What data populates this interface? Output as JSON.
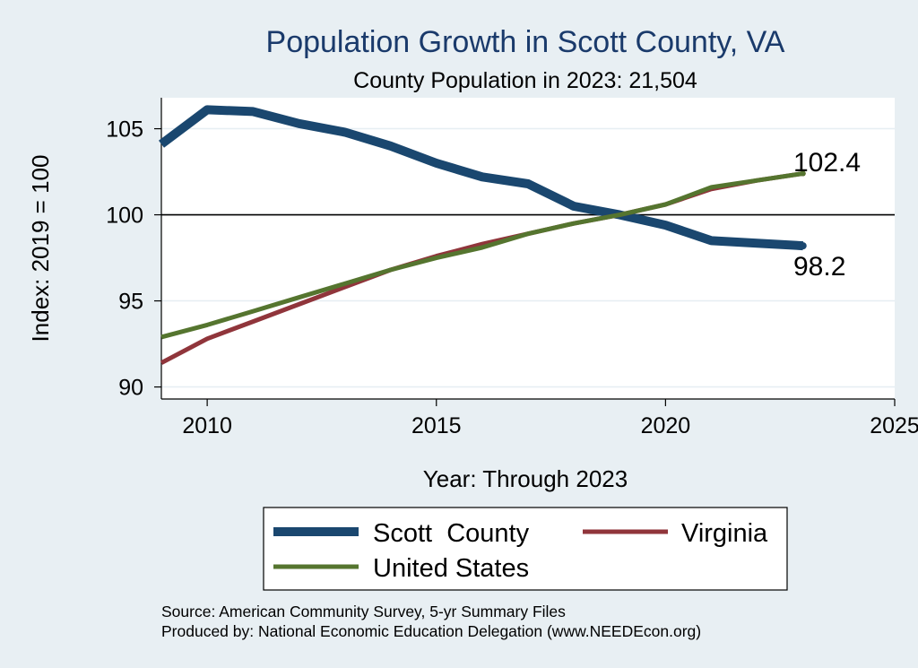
{
  "chart_data": {
    "type": "line",
    "title": "Population Growth in Scott County, VA",
    "subtitle": "County Population in 2023: 21,504",
    "xlabel": "Year: Through 2023",
    "ylabel": "Index: 2019 = 100",
    "xlim": [
      2009,
      2025
    ],
    "ylim": [
      89.3,
      106.8
    ],
    "x_ticks": [
      2010,
      2015,
      2020,
      2025
    ],
    "y_ticks": [
      90,
      95,
      100,
      105
    ],
    "reference_line": 100,
    "grid": true,
    "legend_position": "bottom",
    "x": [
      2009,
      2010,
      2011,
      2012,
      2013,
      2014,
      2015,
      2016,
      2017,
      2018,
      2019,
      2020,
      2021,
      2022,
      2023
    ],
    "series": [
      {
        "name": "Scott  County",
        "color": "#1a476f",
        "values": [
          104.1,
          106.1,
          106.0,
          105.3,
          104.8,
          104.0,
          103.0,
          102.2,
          101.8,
          100.5,
          100.0,
          99.4,
          98.5,
          98.35,
          98.2
        ],
        "end_label": "98.2"
      },
      {
        "name": "Virginia",
        "color": "#90353b",
        "values": [
          91.4,
          92.8,
          93.8,
          94.8,
          95.8,
          96.8,
          97.6,
          98.3,
          98.9,
          99.5,
          100.0,
          100.6,
          101.5,
          102.0,
          102.4
        ],
        "end_label": "102.4"
      },
      {
        "name": "United States",
        "color": "#55752f",
        "values": [
          92.9,
          93.6,
          94.4,
          95.2,
          96.0,
          96.8,
          97.5,
          98.1,
          98.9,
          99.5,
          100.0,
          100.6,
          101.6,
          102.0,
          102.4
        ],
        "end_label": ""
      }
    ],
    "source_lines": [
      "Source: American Community Survey, 5-yr Summary Files",
      "Produced by: National Economic Education Delegation (www.NEEDEcon.org)"
    ]
  }
}
